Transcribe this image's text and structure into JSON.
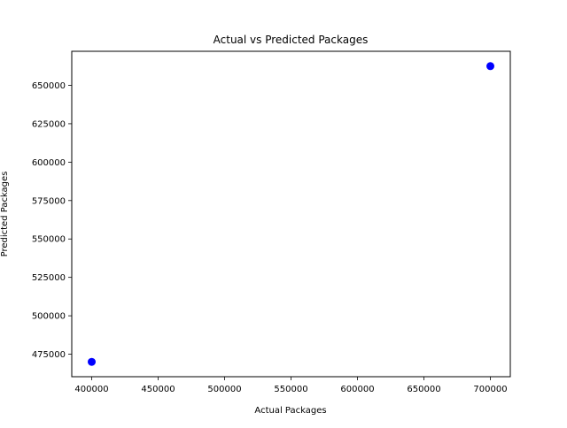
{
  "chart_data": {
    "type": "scatter",
    "title": "Actual vs Predicted Packages",
    "xlabel": "Actual Packages",
    "ylabel": "Predicted Packages",
    "xlim": [
      385000,
      715000
    ],
    "ylim": [
      460350,
      672150
    ],
    "xticks": [
      400000,
      450000,
      500000,
      550000,
      600000,
      650000,
      700000
    ],
    "yticks": [
      475000,
      500000,
      525000,
      550000,
      575000,
      600000,
      625000,
      650000
    ],
    "grid": false,
    "series": [
      {
        "color": "#0000ff",
        "points": [
          {
            "x": 400000,
            "y": 470000
          },
          {
            "x": 700000,
            "y": 662500
          }
        ]
      }
    ]
  }
}
